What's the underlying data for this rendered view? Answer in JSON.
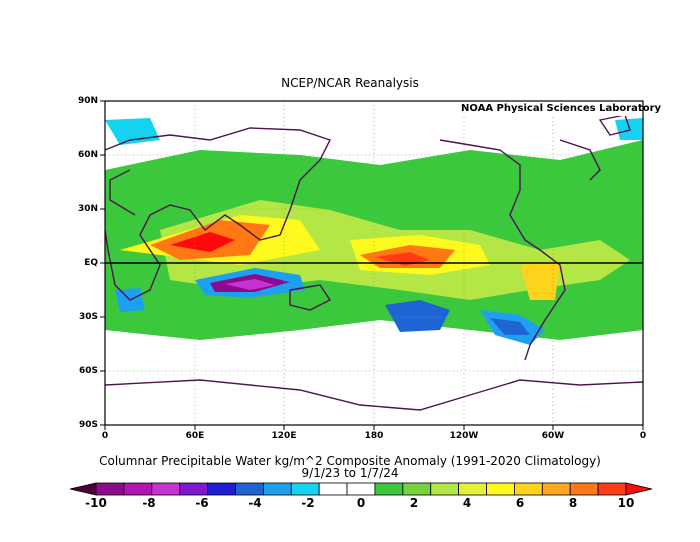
{
  "title": "NCEP/NCAR Reanalysis",
  "credit": "NOAA Physical Sciences Laboratory",
  "subtitle_line1": "Columnar Precipitable Water kg/m^2 Composite Anomaly (1991-2020 Climatology)",
  "subtitle_line2": "9/1/23  to 1/7/24",
  "lat_labels": [
    "90N",
    "60N",
    "30N",
    "EQ",
    "30S",
    "60S",
    "90S"
  ],
  "lon_labels": [
    "0",
    "60E",
    "120E",
    "180",
    "120W",
    "60W",
    "0"
  ],
  "colorbar": {
    "labels": [
      "-10",
      "-8",
      "-6",
      "-4",
      "-2",
      "0",
      "2",
      "4",
      "6",
      "8",
      "10"
    ],
    "colors": [
      "#4b0038",
      "#8c0a8c",
      "#b414b4",
      "#c832d2",
      "#7f19d2",
      "#1e1ed2",
      "#1e64d2",
      "#1ea0f0",
      "#14d2f0",
      "#ffffff",
      "#ffffff",
      "#3cc83c",
      "#78d23c",
      "#b4e646",
      "#e6f03c",
      "#fffa1e",
      "#ffd21e",
      "#ffaa1e",
      "#ff7814",
      "#ff3c14",
      "#ff0a0a"
    ]
  }
}
